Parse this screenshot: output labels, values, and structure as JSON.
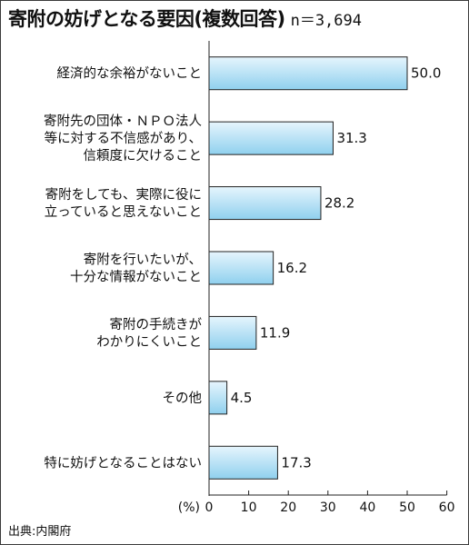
{
  "title": "寄附の妨げとなる要因(複数回答)",
  "sample": "n＝3,694",
  "source": "出典:内閣府",
  "colors": {
    "bar_fill_top": "#e6f5fd",
    "bar_fill_bottom": "#8fd0ee",
    "bar_stroke": "#222222",
    "axis": "#222222"
  },
  "chart_data": {
    "type": "bar",
    "orientation": "horizontal",
    "categories": [
      "経済的な余裕がないこと",
      "寄附先の団体・ＮＰＯ法人等に対する不信感があり、信頼度に欠けること",
      "寄附をしても、実際に役に立っていると思えないこと",
      "寄附を行いたいが、十分な情報がないこと",
      "寄附の手続きがわかりにくいこと",
      "その他",
      "特に妨げとなることはない"
    ],
    "category_lines": [
      [
        "経済的な余裕がないこと"
      ],
      [
        "寄附先の団体・ＮＰＯ法人",
        "等に対する不信感があり、",
        "信頼度に欠けること"
      ],
      [
        "寄附をしても、実際に役に",
        "立っていると思えないこと"
      ],
      [
        "寄附を行いたいが、",
        "十分な情報がないこと"
      ],
      [
        "寄附の手続きが",
        "わかりにくいこと"
      ],
      [
        "その他"
      ],
      [
        "特に妨げとなることはない"
      ]
    ],
    "values": [
      50.0,
      31.3,
      28.2,
      16.2,
      11.9,
      4.5,
      17.3
    ],
    "value_labels": [
      "50.0",
      "31.3",
      "28.2",
      "16.2",
      "11.9",
      "4.5",
      "17.3"
    ],
    "xlim": [
      0,
      60
    ],
    "xticks": [
      0,
      10,
      20,
      30,
      40,
      50,
      60
    ],
    "xlabel": "(%)",
    "grid": false
  }
}
